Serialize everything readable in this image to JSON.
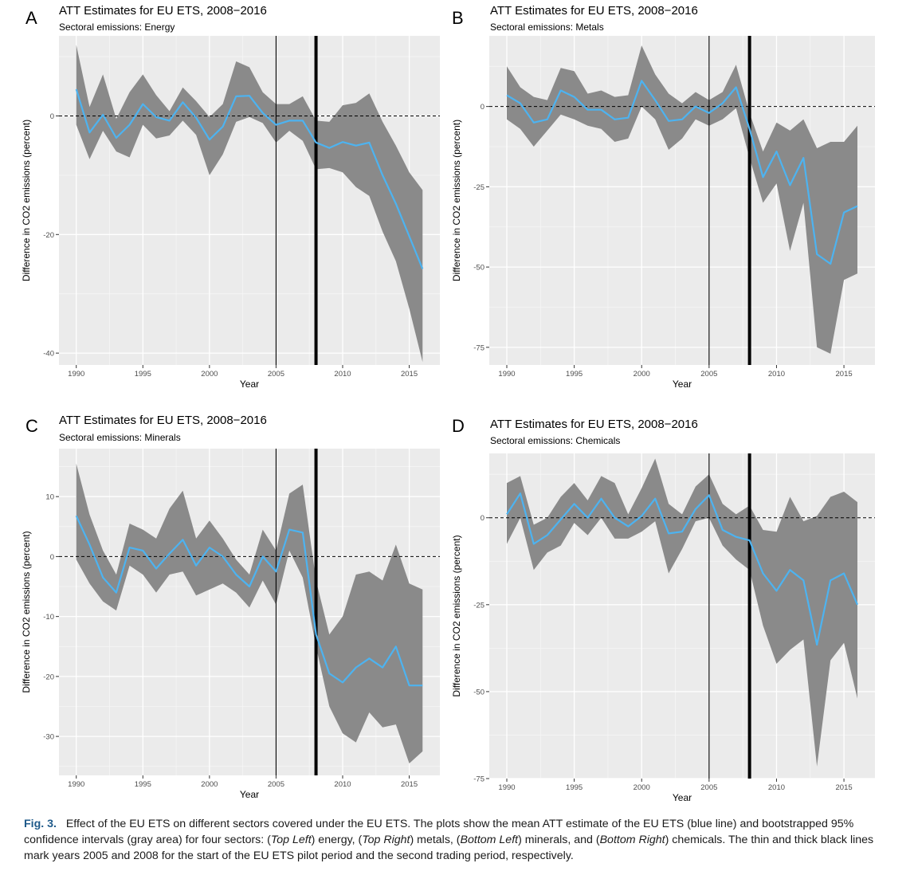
{
  "chart_data": [
    {
      "id": "A",
      "type": "area",
      "title": "ATT Estimates for EU ETS, 2008−2016",
      "subtitle": "Sectoral emissions: Energy",
      "xlabel": "Year",
      "ylabel": "Difference in CO2 emissions (percent)",
      "xlim": [
        1988.7,
        2017.3
      ],
      "ylim": [
        -42,
        13.5
      ],
      "xticks": [
        1990,
        1995,
        2000,
        2005,
        2010,
        2015
      ],
      "yticks": [
        0,
        -20,
        -40
      ],
      "hline": 0,
      "vlines": [
        {
          "x": 2005,
          "weight": "thin"
        },
        {
          "x": 2008,
          "weight": "thick"
        }
      ],
      "x": [
        1990,
        1991,
        1992,
        1993,
        1994,
        1995,
        1996,
        1997,
        1998,
        1999,
        2000,
        2001,
        2002,
        2003,
        2004,
        2005,
        2006,
        2007,
        2008,
        2009,
        2010,
        2011,
        2012,
        2013,
        2014,
        2015,
        2016
      ],
      "mean": [
        4.5,
        -2.8,
        0.2,
        -3.7,
        -1.5,
        2.0,
        -0.2,
        -0.8,
        2.3,
        -0.3,
        -4.0,
        -1.8,
        3.3,
        3.4,
        0.5,
        -1.5,
        -0.8,
        -0.8,
        -4.5,
        -5.4,
        -4.4,
        -5.0,
        -4.5,
        -10.0,
        -14.8,
        -20.3,
        -25.8
      ],
      "upper": [
        12.0,
        1.5,
        7.0,
        -0.5,
        4.0,
        7.0,
        3.5,
        0.8,
        4.8,
        2.5,
        -0.2,
        2.0,
        9.2,
        8.2,
        4.0,
        2.0,
        2.0,
        3.3,
        -0.8,
        -1.0,
        1.8,
        2.2,
        3.8,
        -1.0,
        -5.0,
        -9.5,
        -12.5
      ],
      "lower": [
        -1.5,
        -7.3,
        -2.5,
        -6.0,
        -7.0,
        -1.5,
        -3.8,
        -3.3,
        -0.8,
        -3.2,
        -10.0,
        -6.5,
        -1.0,
        -0.2,
        -1.2,
        -4.5,
        -2.5,
        -4.2,
        -9.0,
        -8.8,
        -9.5,
        -12.0,
        -13.5,
        -19.5,
        -24.5,
        -32.5,
        -41.5
      ],
      "colors": {
        "band": "#8a8a8a",
        "line": "#4db3f0",
        "panel": "#ebebeb"
      }
    },
    {
      "id": "B",
      "type": "area",
      "title": "ATT Estimates for EU ETS, 2008−2016",
      "subtitle": "Sectoral emissions: Metals",
      "xlabel": "Year",
      "ylabel": "Difference in CO2 emissions (percent)",
      "xlim": [
        1988.7,
        2017.3
      ],
      "ylim": [
        -80.5,
        22
      ],
      "xticks": [
        1990,
        1995,
        2000,
        2005,
        2010,
        2015
      ],
      "yticks": [
        0,
        -25,
        -50,
        -75
      ],
      "hline": 0,
      "vlines": [
        {
          "x": 2005,
          "weight": "thin"
        },
        {
          "x": 2008,
          "weight": "thick"
        }
      ],
      "x": [
        1990,
        1991,
        1992,
        1993,
        1994,
        1995,
        1996,
        1997,
        1998,
        1999,
        2000,
        2001,
        2002,
        2003,
        2004,
        2005,
        2006,
        2007,
        2008,
        2009,
        2010,
        2011,
        2012,
        2013,
        2014,
        2015,
        2016
      ],
      "mean": [
        3.5,
        1.0,
        -5.0,
        -4.0,
        5.0,
        3.0,
        -1.0,
        -1.0,
        -4.0,
        -3.5,
        8.0,
        2.0,
        -4.5,
        -4.0,
        0.0,
        -2.0,
        1.0,
        6.0,
        -7.0,
        -22.0,
        -14.0,
        -24.5,
        -16.0,
        -46.0,
        -49.0,
        -33.0,
        -31.0
      ],
      "upper": [
        12.5,
        6.0,
        3.0,
        2.0,
        12.0,
        11.0,
        4.0,
        5.0,
        3.0,
        3.5,
        19.0,
        10.0,
        4.0,
        1.0,
        4.5,
        2.0,
        4.5,
        13.0,
        -2.0,
        -14.0,
        -5.0,
        -7.5,
        -4.0,
        -13.0,
        -11.0,
        -11.0,
        -6.0
      ],
      "lower": [
        -4.0,
        -7.0,
        -12.5,
        -7.5,
        -2.5,
        -4.0,
        -6.0,
        -7.0,
        -11.0,
        -10.0,
        0.0,
        -4.0,
        -13.5,
        -10.0,
        -4.0,
        -6.0,
        -4.0,
        -0.5,
        -16.0,
        -30.0,
        -24.0,
        -45.0,
        -30.0,
        -75.0,
        -77.0,
        -54.0,
        -52.0
      ],
      "colors": {
        "band": "#8a8a8a",
        "line": "#4db3f0",
        "panel": "#ebebeb"
      }
    },
    {
      "id": "C",
      "type": "area",
      "title": "ATT Estimates for EU ETS, 2008−2016",
      "subtitle": "Sectoral emissions: Minerals",
      "xlabel": "Year",
      "ylabel": "Difference in CO2 emissions (percent)",
      "xlim": [
        1988.7,
        2017.3
      ],
      "ylim": [
        -36.5,
        18
      ],
      "xticks": [
        1990,
        1995,
        2000,
        2005,
        2010,
        2015
      ],
      "yticks": [
        10,
        0,
        -10,
        -20,
        -30
      ],
      "hline": 0,
      "vlines": [
        {
          "x": 2005,
          "weight": "thin"
        },
        {
          "x": 2008,
          "weight": "thick"
        }
      ],
      "x": [
        1990,
        1991,
        1992,
        1993,
        1994,
        1995,
        1996,
        1997,
        1998,
        1999,
        2000,
        2001,
        2002,
        2003,
        2004,
        2005,
        2006,
        2007,
        2008,
        2009,
        2010,
        2011,
        2012,
        2013,
        2014,
        2015,
        2016
      ],
      "mean": [
        6.8,
        2.0,
        -3.5,
        -6.0,
        1.5,
        1.0,
        -2.0,
        0.5,
        2.8,
        -1.5,
        1.5,
        0.0,
        -3.0,
        -5.0,
        0.0,
        -2.5,
        4.5,
        4.0,
        -13.0,
        -19.5,
        -21.0,
        -18.5,
        -17.0,
        -18.5,
        -15.0,
        -21.5,
        -21.5
      ],
      "upper": [
        15.5,
        7.0,
        1.0,
        -3.0,
        5.5,
        4.5,
        3.0,
        8.0,
        11.0,
        3.0,
        6.0,
        3.0,
        -0.5,
        -3.0,
        4.5,
        1.0,
        10.5,
        12.0,
        -4.0,
        -13.0,
        -10.0,
        -3.0,
        -2.5,
        -4.0,
        2.0,
        -4.5,
        -5.5
      ],
      "lower": [
        -0.5,
        -4.5,
        -7.5,
        -9.0,
        -1.5,
        -3.0,
        -6.0,
        -3.0,
        -2.5,
        -6.5,
        -5.5,
        -4.5,
        -6.0,
        -8.5,
        -4.0,
        -8.0,
        1.0,
        -3.5,
        -15.0,
        -25.0,
        -29.5,
        -31.0,
        -26.0,
        -28.5,
        -28.0,
        -34.5,
        -32.5
      ],
      "colors": {
        "band": "#8a8a8a",
        "line": "#4db3f0",
        "panel": "#ebebeb"
      }
    },
    {
      "id": "D",
      "type": "area",
      "title": "ATT Estimates for EU ETS, 2008−2016",
      "subtitle": "Sectoral emissions: Chemicals",
      "xlabel": "Year",
      "ylabel": "Difference in CO2 emissions (percent)",
      "xlim": [
        1988.7,
        2017.3
      ],
      "ylim": [
        -75,
        18.5
      ],
      "xticks": [
        1990,
        1995,
        2000,
        2005,
        2010,
        2015
      ],
      "yticks": [
        0,
        -25,
        -50,
        -75
      ],
      "hline": 0,
      "vlines": [
        {
          "x": 2005,
          "weight": "thin"
        },
        {
          "x": 2008,
          "weight": "thick"
        }
      ],
      "x": [
        1990,
        1991,
        1992,
        1993,
        1994,
        1995,
        1996,
        1997,
        1998,
        1999,
        2000,
        2001,
        2002,
        2003,
        2004,
        2005,
        2006,
        2007,
        2008,
        2009,
        2010,
        2011,
        2012,
        2013,
        2014,
        2015,
        2016
      ],
      "mean": [
        1.0,
        7.0,
        -7.5,
        -5.0,
        -0.5,
        4.0,
        0.0,
        5.5,
        0.0,
        -2.5,
        0.5,
        5.5,
        -4.5,
        -4.0,
        2.5,
        6.5,
        -3.5,
        -5.5,
        -6.5,
        -16.0,
        -21.0,
        -15.0,
        -18.0,
        -36.5,
        -18.0,
        -16.0,
        -25.0
      ],
      "upper": [
        10.0,
        12.0,
        -2.0,
        0.0,
        6.0,
        10.0,
        5.0,
        12.0,
        10.0,
        1.0,
        8.5,
        17.0,
        4.0,
        1.0,
        9.0,
        12.5,
        4.0,
        1.0,
        3.5,
        -3.5,
        -4.0,
        6.0,
        -1.0,
        0.5,
        6.0,
        7.5,
        4.5
      ],
      "lower": [
        -7.5,
        0.0,
        -15.0,
        -10.0,
        -8.0,
        -1.5,
        -5.0,
        0.0,
        -6.0,
        -6.0,
        -4.0,
        -1.0,
        -16.0,
        -9.0,
        -1.0,
        0.0,
        -8.0,
        -12.0,
        -15.0,
        -31.0,
        -42.0,
        -38.0,
        -35.0,
        -71.5,
        -41.0,
        -36.0,
        -52.0
      ],
      "colors": {
        "band": "#8a8a8a",
        "line": "#4db3f0",
        "panel": "#ebebeb"
      }
    }
  ],
  "caption": {
    "label": "Fig. 3.",
    "parts": [
      {
        "t": "Effect of the EU ETS on different sectors covered under the EU ETS. The plots show the mean ATT estimate of the EU ETS (blue line) and bootstrapped 95% confidence intervals (gray area) for four sectors: (",
        "i": false
      },
      {
        "t": "Top Left",
        "i": true
      },
      {
        "t": ") energy, (",
        "i": false
      },
      {
        "t": "Top Right",
        "i": true
      },
      {
        "t": ") metals, (",
        "i": false
      },
      {
        "t": "Bottom Left",
        "i": true
      },
      {
        "t": ") minerals, and (",
        "i": false
      },
      {
        "t": "Bottom Right",
        "i": true
      },
      {
        "t": ") chemicals. The thin and thick black lines mark years 2005 and 2008 for the start of the EU ETS pilot period and the second trading period, respectively.",
        "i": false
      }
    ]
  }
}
